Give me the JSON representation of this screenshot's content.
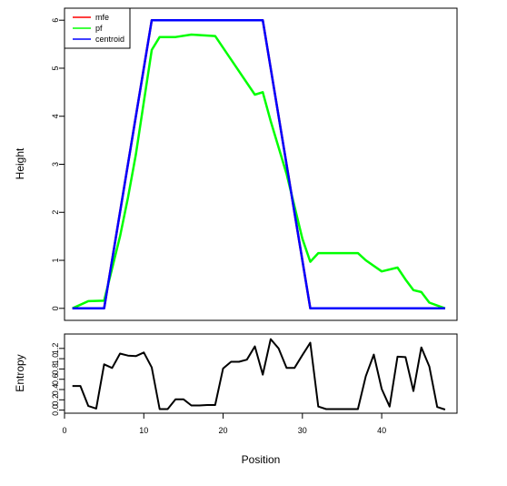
{
  "chart_data": [
    {
      "type": "line",
      "xlabel": "",
      "ylabel": "Height",
      "xlim": [
        0,
        49.5
      ],
      "ylim": [
        -0.25,
        6.25
      ],
      "yticks": [
        0,
        1,
        2,
        3,
        4,
        5,
        6
      ],
      "legend": {
        "placement": "top-left",
        "entries": [
          "mfe",
          "pf",
          "centroid"
        ]
      },
      "series": [
        {
          "name": "mfe",
          "color": "#ff0000",
          "x": [
            1,
            5,
            11,
            25,
            31,
            48
          ],
          "y": [
            0,
            0,
            6,
            6,
            0,
            0
          ]
        },
        {
          "name": "pf",
          "color": "#00ff00",
          "x": [
            1,
            3,
            5,
            7,
            8,
            9,
            10,
            11,
            12,
            13,
            14,
            16,
            19,
            24,
            25,
            26,
            28,
            30,
            31,
            32,
            37,
            38,
            40,
            42,
            43,
            44,
            45,
            46,
            48
          ],
          "y": [
            0,
            0.15,
            0.16,
            1.5,
            2.3,
            3.2,
            4.3,
            5.38,
            5.65,
            5.65,
            5.65,
            5.7,
            5.67,
            4.45,
            4.5,
            3.9,
            2.8,
            1.45,
            0.97,
            1.15,
            1.15,
            1.0,
            0.77,
            0.85,
            0.6,
            0.38,
            0.34,
            0.12,
            0
          ]
        },
        {
          "name": "centroid",
          "color": "#0000ff",
          "x": [
            1,
            5,
            11,
            25,
            31,
            48
          ],
          "y": [
            0,
            0,
            6,
            6,
            0,
            0
          ]
        }
      ]
    },
    {
      "type": "line",
      "xlabel": "Position",
      "ylabel": "Entropy",
      "xlim": [
        0,
        49.5
      ],
      "ylim": [
        -0.06,
        1.48
      ],
      "yticks": [
        "0.0",
        "0.2",
        "0.4",
        "0.6",
        "0.8",
        "1.0",
        "1.2"
      ],
      "xticks": [
        0,
        10,
        20,
        30,
        40
      ],
      "series": [
        {
          "name": "",
          "color": "#000000",
          "x": [
            1,
            2,
            3,
            4,
            5,
            6,
            7,
            8,
            9,
            10,
            11,
            12,
            13,
            14,
            15,
            16,
            17,
            18,
            19,
            20,
            21,
            22,
            23,
            24,
            25,
            26,
            27,
            28,
            29,
            30,
            31,
            32,
            33,
            34,
            35,
            36,
            37,
            38,
            39,
            40,
            41,
            42,
            43,
            44,
            45,
            46,
            47,
            48
          ],
          "y": [
            0.47,
            0.47,
            0.08,
            0.03,
            0.89,
            0.82,
            1.1,
            1.06,
            1.05,
            1.12,
            0.83,
            0.02,
            0.02,
            0.21,
            0.21,
            0.09,
            0.09,
            0.1,
            0.1,
            0.81,
            0.94,
            0.94,
            0.98,
            1.24,
            0.69,
            1.38,
            1.2,
            0.82,
            0.82,
            1.07,
            1.31,
            0.07,
            0.02,
            0.02,
            0.02,
            0.02,
            0.02,
            0.66,
            1.08,
            0.41,
            0.07,
            1.04,
            1.03,
            0.37,
            1.22,
            0.85,
            0.06,
            0.01
          ]
        }
      ]
    }
  ]
}
